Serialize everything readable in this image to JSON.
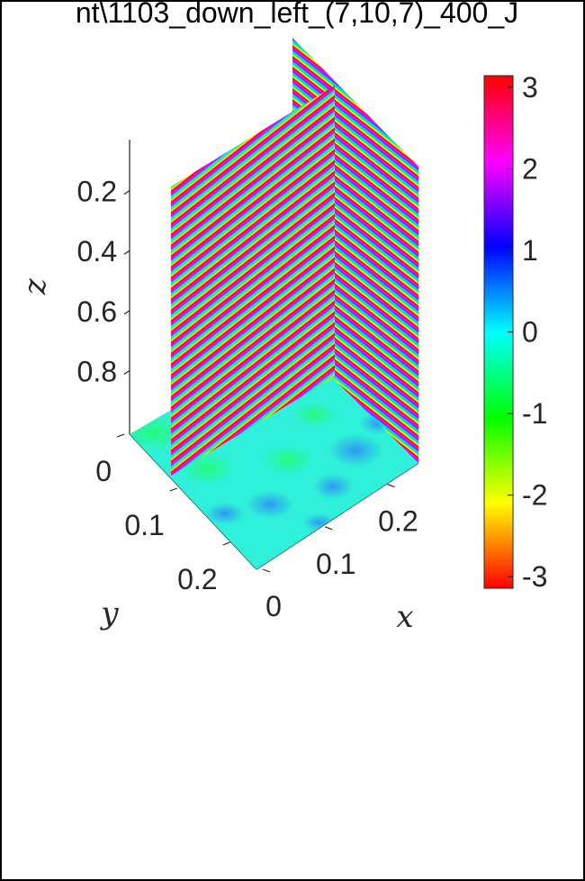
{
  "title": "nt\\1103_down_left_(7,10,7)_400_J",
  "chart_data": {
    "type": "heatmap",
    "view": "3d-slices",
    "axes": {
      "x": {
        "label": "x",
        "ticks": [
          "0",
          "0.1",
          "0.2"
        ],
        "range": [
          0,
          0.25
        ]
      },
      "y": {
        "label": "y",
        "ticks": [
          "0",
          "0.1",
          "0.2"
        ],
        "range": [
          0,
          0.25
        ]
      },
      "z": {
        "label": "z",
        "ticks": [
          "0.2",
          "0.4",
          "0.6",
          "0.8"
        ],
        "range": [
          0,
          1
        ],
        "reversed": true
      }
    },
    "slices": [
      {
        "plane": "bottom",
        "pattern": "smooth noise",
        "value_range": [
          -0.5,
          1.0
        ]
      },
      {
        "plane": "x-z",
        "pattern": "horizontal stripes",
        "value_range": [
          -3.14,
          3.14
        ]
      },
      {
        "plane": "y-z",
        "pattern": "horizontal stripes",
        "value_range": [
          -3.14,
          3.14
        ]
      }
    ],
    "colorbar": {
      "min": -3.14159,
      "max": 3.14159,
      "ticks": [
        "-3",
        "-2",
        "-1",
        "0",
        "1",
        "2",
        "3"
      ],
      "colormap": "hsv"
    },
    "grid": false
  }
}
